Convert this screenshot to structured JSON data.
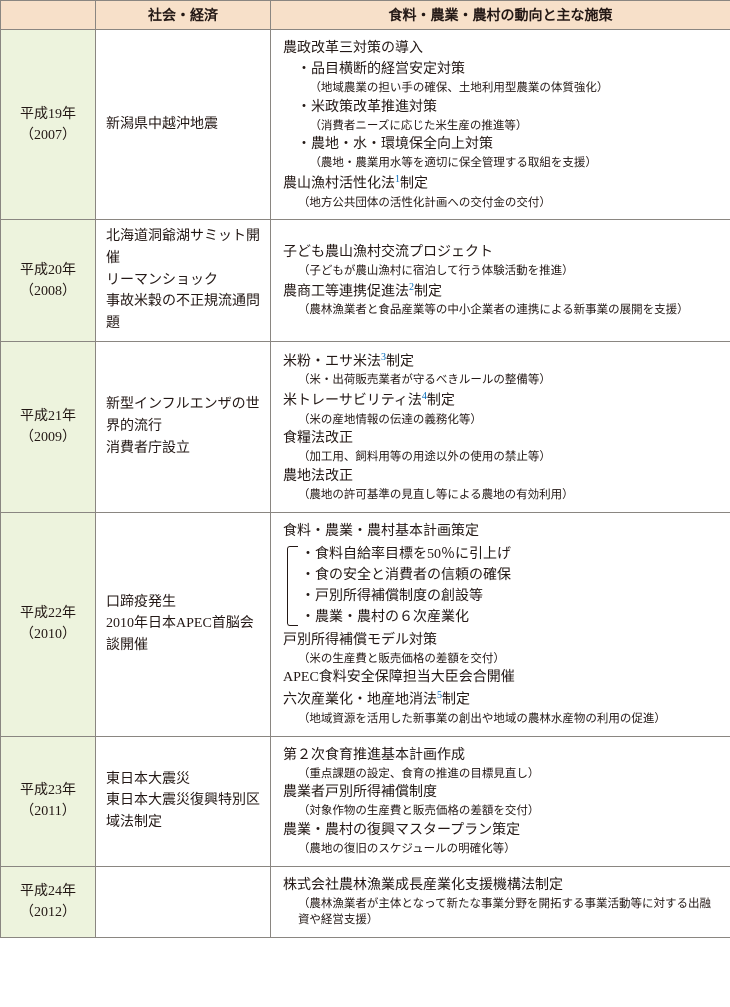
{
  "headers": {
    "col1": "",
    "col2": "社会・経済",
    "col3": "食料・農業・農村の動向と主な施策"
  },
  "rows": [
    {
      "year_jp": "平成19年",
      "year_ad": "（2007）",
      "society": "新潟県中越沖地震",
      "policy_html": "<div>農政改革三対策の導入</div><div class=\"indent1\">・品目横断的経営安定対策</div><div class=\"note2\">（地域農業の担い手の確保、土地利用型農業の体質強化）</div><div class=\"indent1\">・米政策改革推進対策</div><div class=\"note2\">（消費者ニーズに応じた米生産の推進等）</div><div class=\"indent1\">・農地・水・環境保全向上対策</div><div class=\"note2\">（農地・農業用水等を適切に保全管理する取組を支援）</div><div>農山漁村活性化法<sup class=\"fn\">1</sup>制定</div><div class=\"note\">（地方公共団体の活性化計画への交付金の交付）</div>"
    },
    {
      "year_jp": "平成20年",
      "year_ad": "（2008）",
      "society": "北海道洞爺湖サミット開催<br>リーマンショック<br>事故米穀の不正規流通問題",
      "policy_html": "<div>子ども農山漁村交流プロジェクト</div><div class=\"note\">（子どもが農山漁村に宿泊して行う体験活動を推進）</div><div>農商工等連携促進法<sup class=\"fn\">2</sup>制定</div><div class=\"note\">（農林漁業者と食品産業等の中小企業者の連携による新事業の展開を支援）</div>"
    },
    {
      "year_jp": "平成21年",
      "year_ad": "（2009）",
      "society": "新型インフルエンザの世界的流行<br>消費者庁設立",
      "policy_html": "<div>米粉・エサ米法<sup class=\"fn\">3</sup>制定</div><div class=\"note\">（米・出荷販売業者が守るべきルールの整備等）</div><div>米トレーサビリティ法<sup class=\"fn\">4</sup>制定</div><div class=\"note\">（米の産地情報の伝達の義務化等）</div><div>食糧法改正</div><div class=\"note\">（加工用、飼料用等の用途以外の使用の禁止等）</div><div>農地法改正</div><div class=\"note\">（農地の許可基準の見直し等による農地の有効利用）</div>"
    },
    {
      "year_jp": "平成22年",
      "year_ad": "（2010）",
      "society": "口蹄疫発生<br>2010年日本APEC首脳会談開催",
      "policy_html": "<div>食料・農業・農村基本計画策定</div><div class=\"bracket-wrap\"><div class=\"bracket\"></div><div>・食料自給率目標を50％に引上げ</div><div>・食の安全と消費者の信頼の確保</div><div>・戸別所得補償制度の創設等</div><div>・農業・農村の６次産業化</div></div><div>戸別所得補償モデル対策</div><div class=\"note\">（米の生産費と販売価格の差額を交付）</div><div>APEC食料安全保障担当大臣会合開催</div><div>六次産業化・地産地消法<sup class=\"fn\">5</sup>制定</div><div class=\"note\">（地域資源を活用した新事業の創出や地域の農林水産物の利用の促進）</div>"
    },
    {
      "year_jp": "平成23年",
      "year_ad": "（2011）",
      "society": "東日本大震災<br>東日本大震災復興特別区域法制定",
      "policy_html": "<div>第２次食育推進基本計画作成</div><div class=\"note\">（重点課題の設定、食育の推進の目標見直し）</div><div>農業者戸別所得補償制度</div><div class=\"note\">（対象作物の生産費と販売価格の差額を交付）</div><div>農業・農村の復興マスタープラン策定</div><div class=\"note\">（農地の復旧のスケジュールの明確化等）</div>"
    },
    {
      "year_jp": "平成24年",
      "year_ad": "（2012）",
      "society": "",
      "policy_html": "<div>株式会社農林漁業成長産業化支援機構法制定</div><div class=\"note\">（農林漁業者が主体となって新たな事業分野を開拓する事業活動等に対する出融資や経営支援）</div>"
    }
  ],
  "columns": {
    "c1_w": 95,
    "c2_w": 175,
    "c3_w": 460
  }
}
